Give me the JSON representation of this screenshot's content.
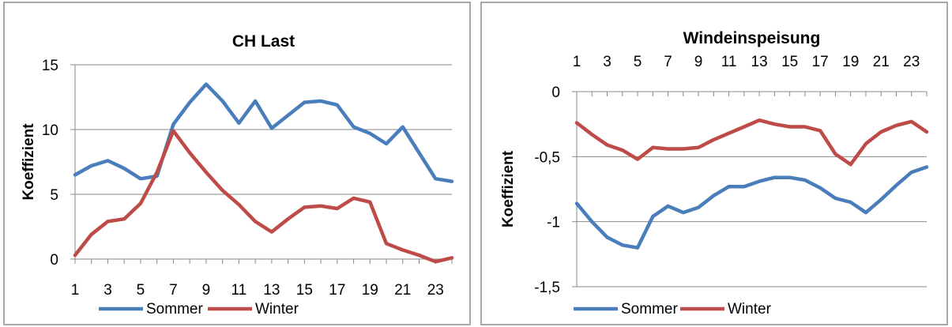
{
  "chart_data": [
    {
      "type": "line",
      "title": "CH Last",
      "xlabel": "",
      "ylabel": "Koeffizient",
      "ylim": [
        0,
        15
      ],
      "yticks": [
        "0",
        "5",
        "10",
        "15"
      ],
      "x": [
        1,
        2,
        3,
        4,
        5,
        6,
        7,
        8,
        9,
        10,
        11,
        12,
        13,
        14,
        15,
        16,
        17,
        18,
        19,
        20,
        21,
        22,
        23,
        24
      ],
      "xtick_labels": [
        "1",
        "3",
        "5",
        "7",
        "9",
        "11",
        "13",
        "15",
        "17",
        "19",
        "21",
        "23"
      ],
      "x_axis_position": "bottom",
      "grid": true,
      "legend": "bottom",
      "series": [
        {
          "name": "Sommer",
          "color": "#4a7ebb",
          "values": [
            6.5,
            7.2,
            7.6,
            7.0,
            6.2,
            6.4,
            10.4,
            12.1,
            13.5,
            12.2,
            10.5,
            12.2,
            10.1,
            11.1,
            12.1,
            12.2,
            11.9,
            10.2,
            9.7,
            8.9,
            10.2,
            8.2,
            6.2,
            6.0
          ]
        },
        {
          "name": "Winter",
          "color": "#be4b48",
          "values": [
            0.3,
            1.9,
            2.9,
            3.1,
            4.3,
            6.7,
            9.9,
            8.2,
            6.7,
            5.3,
            4.2,
            2.9,
            2.1,
            3.1,
            4.0,
            4.1,
            3.9,
            4.7,
            4.4,
            1.2,
            0.7,
            0.3,
            -0.2,
            0.1
          ]
        }
      ]
    },
    {
      "type": "line",
      "title": "Windeinspeisung",
      "xlabel": "",
      "ylabel": "Koeffizient",
      "ylim": [
        -1.5,
        0
      ],
      "yticks": [
        "-1,5",
        "-1",
        "-0,5",
        "0"
      ],
      "x": [
        1,
        2,
        3,
        4,
        5,
        6,
        7,
        8,
        9,
        10,
        11,
        12,
        13,
        14,
        15,
        16,
        17,
        18,
        19,
        20,
        21,
        22,
        23,
        24
      ],
      "xtick_labels": [
        "1",
        "3",
        "5",
        "7",
        "9",
        "11",
        "13",
        "15",
        "17",
        "19",
        "21",
        "23"
      ],
      "x_axis_position": "top",
      "grid": true,
      "legend": "bottom",
      "series": [
        {
          "name": "Sommer",
          "color": "#4a7ebb",
          "values": [
            -0.86,
            -1.0,
            -1.12,
            -1.18,
            -1.2,
            -0.96,
            -0.88,
            -0.93,
            -0.89,
            -0.8,
            -0.73,
            -0.73,
            -0.69,
            -0.66,
            -0.66,
            -0.68,
            -0.74,
            -0.82,
            -0.85,
            -0.93,
            -0.83,
            -0.72,
            -0.62,
            -0.58
          ]
        },
        {
          "name": "Winter",
          "color": "#be4b48",
          "values": [
            -0.24,
            -0.33,
            -0.41,
            -0.45,
            -0.52,
            -0.43,
            -0.44,
            -0.44,
            -0.43,
            -0.37,
            -0.32,
            -0.27,
            -0.22,
            -0.25,
            -0.27,
            -0.27,
            -0.3,
            -0.48,
            -0.56,
            -0.4,
            -0.31,
            -0.26,
            -0.23,
            -0.31
          ]
        }
      ]
    }
  ]
}
